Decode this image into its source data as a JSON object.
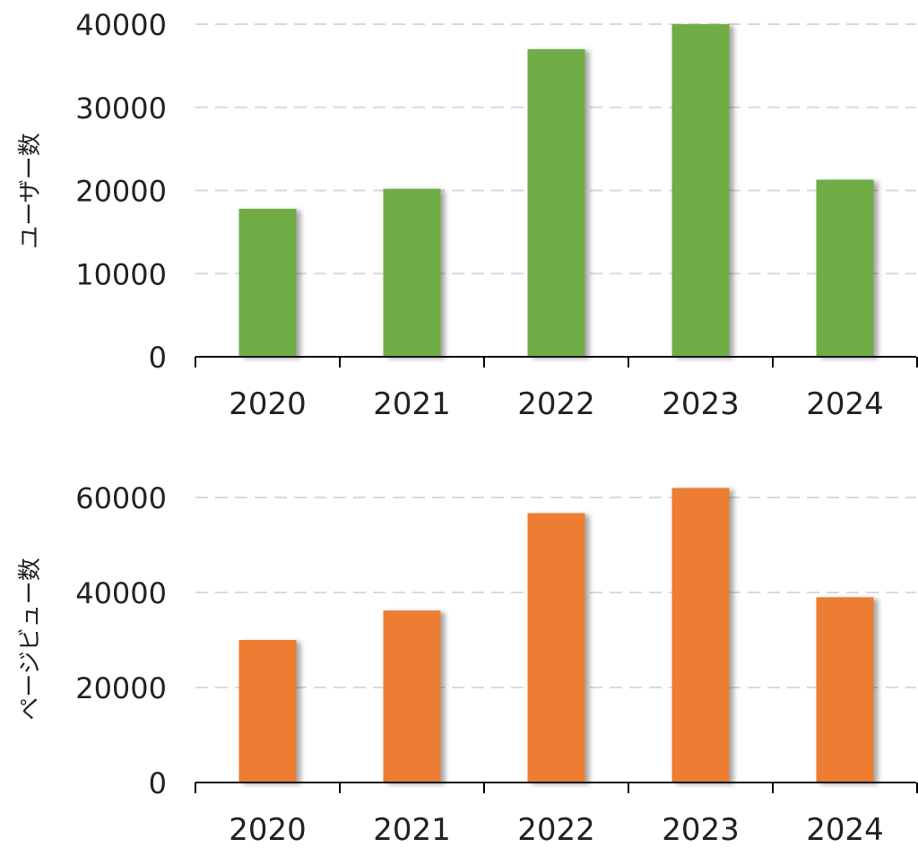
{
  "chart_data": [
    {
      "type": "bar",
      "categories": [
        "2020",
        "2021",
        "2022",
        "2023",
        "2024"
      ],
      "values": [
        17800,
        20200,
        37000,
        40000,
        21300
      ],
      "ylabel": "ユーザー数",
      "xlabel": "",
      "ylim": [
        0,
        40000
      ],
      "yticks": [
        0,
        10000,
        20000,
        30000,
        40000
      ],
      "ytick_labels": [
        "0",
        "10000",
        "20000",
        "30000",
        "40000"
      ],
      "grid": true,
      "color": "#70ad47"
    },
    {
      "type": "bar",
      "categories": [
        "2020",
        "2021",
        "2022",
        "2023",
        "2024"
      ],
      "values": [
        30000,
        36200,
        56700,
        62000,
        39000
      ],
      "ylabel": "ページビュー数",
      "xlabel": "",
      "ylim": [
        0,
        60000
      ],
      "yticks": [
        0,
        20000,
        40000,
        60000
      ],
      "ytick_labels": [
        "0",
        "20000",
        "40000",
        "60000"
      ],
      "grid": true,
      "color": "#ed7d31"
    }
  ]
}
